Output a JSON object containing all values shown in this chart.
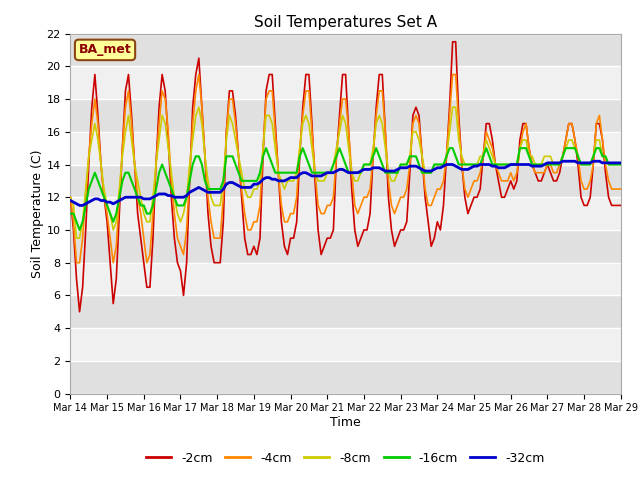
{
  "title": "Soil Temperatures Set A",
  "xlabel": "Time",
  "ylabel": "Soil Temperature (C)",
  "annotation": "BA_met",
  "ylim": [
    0,
    22
  ],
  "yticks": [
    0,
    2,
    4,
    6,
    8,
    10,
    12,
    14,
    16,
    18,
    20,
    22
  ],
  "x_labels": [
    "Mar 14",
    "Mar 15",
    "Mar 16",
    "Mar 17",
    "Mar 18",
    "Mar 19",
    "Mar 20",
    "Mar 21",
    "Mar 22",
    "Mar 23",
    "Mar 24",
    "Mar 25",
    "Mar 26",
    "Mar 27",
    "Mar 28",
    "Mar 29"
  ],
  "fig_bg": "#ffffff",
  "plot_bg_light": "#f0f0f0",
  "plot_bg_dark": "#e0e0e0",
  "series": {
    "-2cm": {
      "color": "#cc0000",
      "lw": 1.2
    },
    "-4cm": {
      "color": "#ff8800",
      "lw": 1.2
    },
    "-8cm": {
      "color": "#cccc00",
      "lw": 1.2
    },
    "-16cm": {
      "color": "#00cc00",
      "lw": 1.5
    },
    "-32cm": {
      "color": "#0000cc",
      "lw": 2.0
    }
  },
  "data": {
    "x": [
      0.0,
      0.083,
      0.167,
      0.25,
      0.333,
      0.417,
      0.5,
      0.583,
      0.667,
      0.75,
      0.833,
      0.917,
      1.0,
      1.083,
      1.167,
      1.25,
      1.333,
      1.417,
      1.5,
      1.583,
      1.667,
      1.75,
      1.833,
      1.917,
      2.0,
      2.083,
      2.167,
      2.25,
      2.333,
      2.417,
      2.5,
      2.583,
      2.667,
      2.75,
      2.833,
      2.917,
      3.0,
      3.083,
      3.167,
      3.25,
      3.333,
      3.417,
      3.5,
      3.583,
      3.667,
      3.75,
      3.833,
      3.917,
      4.0,
      4.083,
      4.167,
      4.25,
      4.333,
      4.417,
      4.5,
      4.583,
      4.667,
      4.75,
      4.833,
      4.917,
      5.0,
      5.083,
      5.167,
      5.25,
      5.333,
      5.417,
      5.5,
      5.583,
      5.667,
      5.75,
      5.833,
      5.917,
      6.0,
      6.083,
      6.167,
      6.25,
      6.333,
      6.417,
      6.5,
      6.583,
      6.667,
      6.75,
      6.833,
      6.917,
      7.0,
      7.083,
      7.167,
      7.25,
      7.333,
      7.417,
      7.5,
      7.583,
      7.667,
      7.75,
      7.833,
      7.917,
      8.0,
      8.083,
      8.167,
      8.25,
      8.333,
      8.417,
      8.5,
      8.583,
      8.667,
      8.75,
      8.833,
      8.917,
      9.0,
      9.083,
      9.167,
      9.25,
      9.333,
      9.417,
      9.5,
      9.583,
      9.667,
      9.75,
      9.833,
      9.917,
      10.0,
      10.083,
      10.167,
      10.25,
      10.333,
      10.417,
      10.5,
      10.583,
      10.667,
      10.75,
      10.833,
      10.917,
      11.0,
      11.083,
      11.167,
      11.25,
      11.333,
      11.417,
      11.5,
      11.583,
      11.667,
      11.75,
      11.833,
      11.917,
      12.0,
      12.083,
      12.167,
      12.25,
      12.333,
      12.417,
      12.5,
      12.583,
      12.667,
      12.75,
      12.833,
      12.917,
      13.0,
      13.083,
      13.167,
      13.25,
      13.333,
      13.417,
      13.5,
      13.583,
      13.667,
      13.75,
      13.833,
      13.917,
      14.0,
      14.083,
      14.167,
      14.25,
      14.333,
      14.417,
      14.5,
      14.583,
      14.667,
      14.75,
      14.833,
      14.917,
      15.0
    ],
    "-2cm": [
      12.0,
      10.0,
      7.0,
      5.0,
      6.5,
      10.0,
      14.0,
      17.5,
      19.5,
      17.0,
      14.0,
      12.0,
      10.5,
      8.0,
      5.5,
      7.0,
      11.0,
      15.0,
      18.5,
      19.5,
      17.0,
      14.0,
      11.0,
      9.5,
      8.0,
      6.5,
      6.5,
      9.5,
      14.0,
      17.5,
      19.5,
      18.5,
      15.5,
      12.0,
      9.5,
      8.0,
      7.5,
      6.0,
      8.0,
      13.0,
      17.5,
      19.5,
      20.5,
      17.5,
      14.5,
      11.0,
      9.0,
      8.0,
      8.0,
      8.0,
      10.5,
      16.0,
      18.5,
      18.5,
      17.0,
      14.5,
      12.0,
      9.5,
      8.5,
      8.5,
      9.0,
      8.5,
      9.5,
      14.5,
      18.5,
      19.5,
      19.5,
      16.5,
      13.5,
      10.5,
      9.0,
      8.5,
      9.5,
      9.5,
      10.5,
      14.5,
      17.5,
      19.5,
      19.5,
      16.5,
      13.0,
      10.0,
      8.5,
      9.0,
      9.5,
      9.5,
      10.0,
      14.5,
      17.0,
      19.5,
      19.5,
      16.0,
      12.5,
      10.0,
      9.0,
      9.5,
      10.0,
      10.0,
      11.0,
      14.5,
      17.5,
      19.5,
      19.5,
      16.0,
      12.0,
      10.0,
      9.0,
      9.5,
      10.0,
      10.0,
      10.5,
      13.5,
      17.0,
      17.5,
      17.0,
      14.5,
      12.0,
      10.5,
      9.0,
      9.5,
      10.5,
      10.0,
      11.5,
      14.5,
      17.5,
      21.5,
      21.5,
      17.0,
      14.0,
      12.0,
      11.0,
      11.5,
      12.0,
      12.0,
      12.5,
      14.5,
      16.5,
      16.5,
      15.5,
      14.0,
      13.0,
      12.0,
      12.0,
      12.5,
      13.0,
      12.5,
      13.0,
      15.5,
      16.5,
      16.5,
      15.0,
      14.0,
      13.5,
      13.0,
      13.0,
      13.5,
      14.0,
      13.5,
      13.0,
      13.0,
      13.5,
      14.5,
      15.5,
      16.5,
      16.5,
      15.5,
      14.0,
      12.0,
      11.5,
      11.5,
      12.0,
      14.0,
      16.5,
      16.5,
      15.5,
      13.5,
      12.0,
      11.5,
      11.5,
      11.5,
      11.5
    ],
    "-4cm": [
      12.0,
      10.5,
      8.0,
      8.0,
      9.5,
      12.0,
      14.5,
      16.5,
      18.0,
      16.5,
      14.0,
      12.0,
      11.0,
      9.5,
      8.0,
      9.0,
      12.0,
      15.0,
      17.5,
      18.5,
      16.5,
      14.0,
      12.0,
      11.0,
      9.5,
      8.0,
      8.5,
      11.0,
      14.0,
      16.5,
      18.5,
      18.0,
      16.0,
      13.0,
      11.0,
      9.5,
      9.0,
      8.5,
      10.0,
      13.5,
      16.5,
      18.5,
      19.5,
      17.5,
      14.5,
      12.0,
      10.5,
      9.5,
      9.5,
      9.5,
      12.0,
      16.0,
      18.0,
      18.0,
      16.5,
      14.5,
      12.5,
      11.0,
      10.0,
      10.0,
      10.5,
      10.5,
      11.5,
      15.0,
      18.0,
      18.5,
      18.5,
      16.0,
      13.5,
      11.5,
      10.5,
      10.5,
      11.0,
      11.0,
      12.0,
      15.0,
      17.0,
      18.5,
      18.5,
      16.0,
      13.5,
      11.5,
      11.0,
      11.0,
      11.5,
      11.5,
      12.0,
      14.5,
      16.5,
      18.0,
      18.0,
      16.0,
      13.5,
      11.5,
      11.0,
      11.5,
      12.0,
      12.0,
      12.5,
      14.5,
      17.0,
      18.5,
      18.5,
      16.0,
      13.0,
      11.5,
      11.0,
      11.5,
      12.0,
      12.0,
      12.5,
      14.0,
      16.5,
      17.0,
      16.5,
      14.5,
      12.5,
      11.5,
      11.5,
      12.0,
      12.5,
      12.5,
      13.0,
      14.5,
      17.0,
      19.5,
      19.5,
      16.5,
      14.0,
      12.5,
      12.0,
      12.5,
      13.0,
      13.0,
      13.5,
      14.5,
      16.0,
      15.5,
      15.0,
      14.0,
      13.5,
      13.0,
      13.0,
      13.0,
      13.5,
      13.0,
      13.5,
      15.0,
      16.0,
      16.5,
      15.0,
      14.0,
      13.5,
      13.5,
      13.5,
      13.5,
      14.0,
      14.0,
      13.5,
      13.5,
      14.0,
      14.5,
      15.5,
      16.5,
      16.5,
      15.5,
      14.5,
      13.0,
      12.5,
      12.5,
      13.0,
      14.0,
      16.5,
      17.0,
      15.5,
      14.0,
      13.0,
      12.5,
      12.5,
      12.5,
      12.5
    ],
    "-8cm": [
      12.0,
      11.5,
      9.5,
      9.5,
      10.5,
      12.5,
      14.5,
      15.5,
      16.5,
      15.5,
      14.0,
      12.5,
      11.5,
      11.0,
      10.0,
      10.5,
      12.5,
      14.5,
      16.0,
      17.0,
      15.5,
      14.0,
      13.0,
      12.0,
      11.0,
      10.5,
      10.5,
      12.0,
      14.0,
      15.5,
      17.0,
      16.5,
      15.0,
      13.5,
      12.0,
      11.0,
      10.5,
      11.0,
      12.0,
      14.0,
      15.5,
      17.0,
      17.5,
      16.5,
      14.5,
      13.0,
      12.0,
      11.5,
      11.5,
      11.5,
      13.0,
      15.5,
      17.0,
      16.5,
      15.5,
      14.5,
      13.5,
      12.5,
      12.0,
      12.0,
      12.5,
      12.5,
      13.0,
      15.0,
      17.0,
      17.0,
      16.5,
      15.0,
      13.5,
      13.0,
      12.5,
      13.0,
      13.0,
      13.0,
      13.5,
      15.0,
      16.5,
      17.0,
      16.5,
      15.0,
      13.5,
      13.0,
      13.0,
      13.0,
      13.5,
      13.5,
      14.0,
      15.0,
      16.0,
      17.0,
      16.5,
      15.0,
      13.5,
      13.0,
      13.0,
      13.5,
      14.0,
      14.0,
      14.0,
      15.0,
      16.5,
      17.0,
      16.5,
      15.0,
      13.5,
      13.0,
      13.0,
      13.5,
      14.0,
      14.0,
      14.0,
      14.5,
      16.0,
      16.0,
      15.5,
      14.5,
      13.5,
      13.5,
      13.5,
      14.0,
      14.0,
      14.0,
      14.0,
      14.5,
      16.0,
      17.5,
      17.5,
      15.5,
      14.5,
      14.0,
      14.0,
      14.0,
      14.0,
      14.0,
      14.5,
      14.5,
      15.5,
      15.0,
      14.5,
      14.0,
      14.0,
      14.0,
      14.0,
      14.0,
      14.0,
      14.0,
      14.0,
      15.0,
      15.5,
      15.5,
      14.5,
      14.5,
      14.0,
      14.0,
      14.0,
      14.5,
      14.5,
      14.5,
      14.0,
      14.0,
      14.0,
      14.5,
      15.0,
      15.5,
      15.5,
      15.0,
      14.5,
      14.0,
      14.0,
      14.0,
      14.0,
      14.5,
      15.5,
      15.5,
      14.5,
      14.5,
      14.0,
      14.0,
      14.0,
      14.0,
      14.0
    ],
    "-16cm": [
      11.0,
      11.0,
      10.5,
      10.0,
      10.5,
      11.5,
      12.5,
      13.0,
      13.5,
      13.0,
      12.5,
      12.0,
      11.5,
      11.0,
      10.5,
      11.0,
      12.0,
      13.0,
      13.5,
      13.5,
      13.0,
      12.5,
      12.0,
      11.5,
      11.5,
      11.0,
      11.0,
      11.5,
      12.5,
      13.5,
      14.0,
      13.5,
      13.0,
      12.5,
      12.0,
      11.5,
      11.5,
      11.5,
      12.0,
      13.0,
      14.0,
      14.5,
      14.5,
      14.0,
      13.0,
      12.5,
      12.5,
      12.5,
      12.5,
      12.5,
      13.0,
      14.5,
      14.5,
      14.5,
      14.0,
      13.5,
      13.0,
      13.0,
      13.0,
      13.0,
      13.0,
      13.0,
      13.5,
      14.5,
      15.0,
      14.5,
      14.0,
      13.5,
      13.5,
      13.5,
      13.5,
      13.5,
      13.5,
      13.5,
      13.5,
      14.5,
      15.0,
      14.5,
      14.0,
      13.5,
      13.5,
      13.5,
      13.5,
      13.5,
      13.5,
      13.5,
      14.0,
      14.5,
      15.0,
      14.5,
      14.0,
      13.5,
      13.5,
      13.5,
      13.5,
      13.5,
      14.0,
      14.0,
      14.0,
      14.5,
      15.0,
      14.5,
      14.0,
      13.5,
      13.5,
      13.5,
      13.5,
      13.5,
      14.0,
      14.0,
      14.0,
      14.5,
      14.5,
      14.5,
      14.0,
      13.5,
      13.5,
      13.5,
      13.5,
      14.0,
      14.0,
      14.0,
      14.0,
      14.5,
      15.0,
      15.0,
      14.5,
      14.0,
      14.0,
      14.0,
      14.0,
      14.0,
      14.0,
      14.0,
      14.0,
      14.5,
      15.0,
      14.5,
      14.0,
      14.0,
      14.0,
      14.0,
      14.0,
      14.0,
      14.0,
      14.0,
      14.0,
      15.0,
      15.0,
      15.0,
      14.5,
      14.0,
      14.0,
      14.0,
      14.0,
      14.0,
      14.0,
      14.0,
      14.0,
      14.0,
      14.0,
      14.5,
      15.0,
      15.0,
      15.0,
      15.0,
      14.5,
      14.0,
      14.0,
      14.0,
      14.0,
      14.5,
      15.0,
      15.0,
      14.5,
      14.5,
      14.0,
      14.0,
      14.0,
      14.0,
      14.0
    ],
    "-32cm": [
      11.8,
      11.7,
      11.6,
      11.5,
      11.5,
      11.6,
      11.7,
      11.8,
      11.9,
      11.9,
      11.8,
      11.8,
      11.7,
      11.7,
      11.6,
      11.7,
      11.8,
      11.9,
      12.0,
      12.0,
      12.0,
      12.0,
      12.0,
      12.0,
      11.9,
      11.9,
      11.9,
      12.0,
      12.1,
      12.2,
      12.2,
      12.2,
      12.1,
      12.1,
      12.0,
      12.0,
      12.0,
      12.0,
      12.1,
      12.3,
      12.4,
      12.5,
      12.6,
      12.5,
      12.4,
      12.3,
      12.3,
      12.3,
      12.3,
      12.3,
      12.5,
      12.8,
      12.9,
      12.9,
      12.8,
      12.7,
      12.6,
      12.6,
      12.6,
      12.6,
      12.8,
      12.8,
      12.9,
      13.1,
      13.2,
      13.2,
      13.1,
      13.1,
      13.0,
      13.0,
      13.0,
      13.1,
      13.2,
      13.2,
      13.2,
      13.4,
      13.5,
      13.5,
      13.4,
      13.3,
      13.3,
      13.3,
      13.3,
      13.4,
      13.5,
      13.5,
      13.5,
      13.6,
      13.7,
      13.7,
      13.6,
      13.5,
      13.5,
      13.5,
      13.5,
      13.6,
      13.7,
      13.7,
      13.7,
      13.8,
      13.8,
      13.8,
      13.7,
      13.6,
      13.6,
      13.6,
      13.6,
      13.7,
      13.8,
      13.8,
      13.8,
      13.9,
      13.9,
      13.9,
      13.8,
      13.7,
      13.6,
      13.6,
      13.6,
      13.7,
      13.8,
      13.8,
      13.9,
      14.0,
      14.0,
      14.0,
      13.9,
      13.8,
      13.7,
      13.7,
      13.7,
      13.8,
      13.9,
      13.9,
      14.0,
      14.0,
      14.0,
      14.0,
      13.9,
      13.9,
      13.8,
      13.8,
      13.8,
      13.9,
      14.0,
      14.0,
      14.0,
      14.0,
      14.0,
      14.0,
      14.0,
      13.9,
      13.9,
      13.9,
      13.9,
      14.0,
      14.1,
      14.1,
      14.1,
      14.1,
      14.1,
      14.2,
      14.2,
      14.2,
      14.2,
      14.2,
      14.1,
      14.1,
      14.1,
      14.1,
      14.1,
      14.2,
      14.2,
      14.2,
      14.1,
      14.1,
      14.1,
      14.1,
      14.1,
      14.1,
      14.1
    ]
  }
}
